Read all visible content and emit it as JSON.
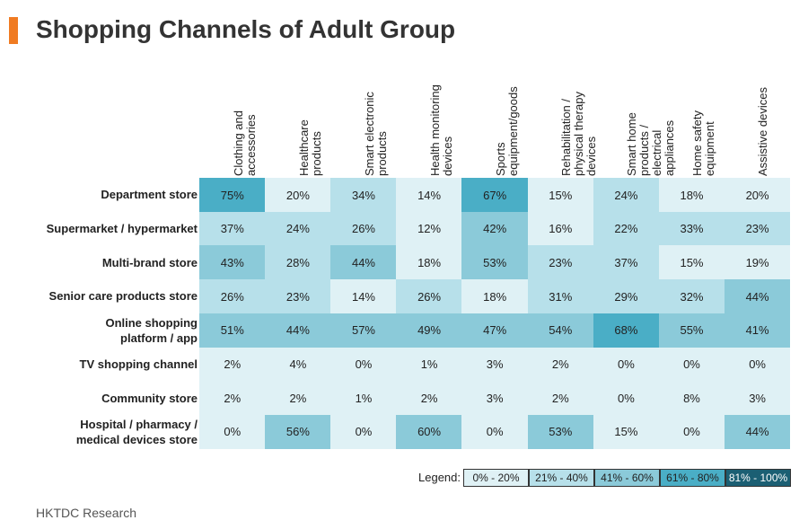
{
  "title": "Shopping Channels of Adult Group",
  "source": "HKTDC Research",
  "colors": {
    "accent": "#f07b22",
    "bin_0_20": "#dff1f5",
    "bin_21_40": "#b7e0ea",
    "bin_41_60": "#8bcad9",
    "bin_61_80": "#4aaec6",
    "bin_81_100": "#1b5f73"
  },
  "chart_data": {
    "type": "heatmap",
    "title": "Shopping Channels of Adult Group",
    "columns": [
      "Clothing and\naccessories",
      "Healthcare\nproducts",
      "Smart electronic\nproducts",
      "Health monitoring\ndevices",
      "Sports\nequipment/goods",
      "Rehabilitation /\nphysical therapy\ndevices",
      "Smart home\nproducts /\nelectrical\nappliances",
      "Home safety\nequipment",
      "Assistive devices"
    ],
    "rows": [
      "Department store",
      "Supermarket / hypermarket",
      "Multi-brand store",
      "Senior care products store",
      "Online shopping\nplatform / app",
      "TV shopping channel",
      "Community store",
      "Hospital / pharmacy /\nmedical devices store"
    ],
    "values": [
      [
        75,
        20,
        34,
        14,
        67,
        15,
        24,
        18,
        20
      ],
      [
        37,
        24,
        26,
        12,
        42,
        16,
        22,
        33,
        23
      ],
      [
        43,
        28,
        44,
        18,
        53,
        23,
        37,
        15,
        19
      ],
      [
        26,
        23,
        14,
        26,
        18,
        31,
        29,
        32,
        44
      ],
      [
        51,
        44,
        57,
        49,
        47,
        54,
        68,
        55,
        41
      ],
      [
        2,
        4,
        0,
        1,
        3,
        2,
        0,
        0,
        0
      ],
      [
        2,
        2,
        1,
        2,
        3,
        2,
        0,
        8,
        3
      ],
      [
        0,
        56,
        0,
        60,
        0,
        53,
        15,
        0,
        44
      ]
    ],
    "value_suffix": "%",
    "legend": {
      "label": "Legend:",
      "placement": "bottom-right",
      "bins": [
        {
          "label": "0% - 20%",
          "min": 0,
          "max": 20
        },
        {
          "label": "21% - 40%",
          "min": 21,
          "max": 40
        },
        {
          "label": "41% - 60%",
          "min": 41,
          "max": 60
        },
        {
          "label": "61% - 80%",
          "min": 61,
          "max": 80
        },
        {
          "label": "81% - 100%",
          "min": 81,
          "max": 100
        }
      ]
    }
  }
}
